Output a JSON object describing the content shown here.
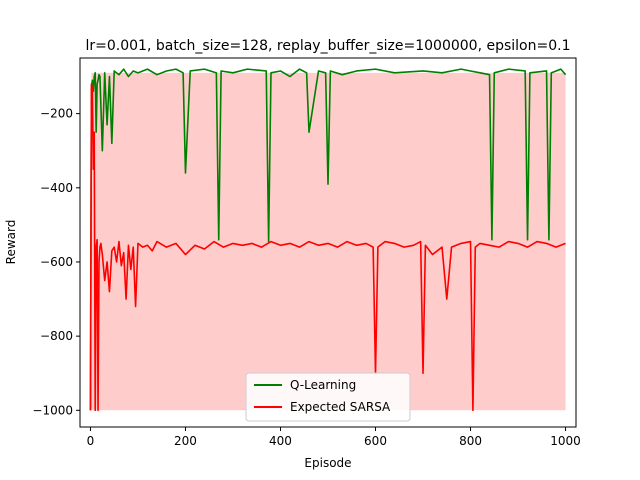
{
  "chart_data": {
    "type": "line",
    "title": "lr=0.001, batch_size=128, replay_buffer_size=1000000, epsilon=0.1",
    "xlabel": "Episode",
    "ylabel": "Reward",
    "xlim": [
      -22,
      1022
    ],
    "ylim": [
      -1045,
      -50
    ],
    "xticks": [
      0,
      200,
      400,
      600,
      800,
      1000
    ],
    "yticks": [
      -1000,
      -800,
      -600,
      -400,
      -200
    ],
    "xtick_labels": [
      "0",
      "200",
      "400",
      "600",
      "800",
      "1000"
    ],
    "ytick_labels": [
      "−1000",
      "−800",
      "−600",
      "−400",
      "−200"
    ],
    "grid": false,
    "legend_position": "lower center",
    "series": [
      {
        "name": "Q-Learning",
        "color": "#008000",
        "values": {
          "x": [
            0,
            2,
            4,
            6,
            8,
            10,
            12,
            14,
            16,
            18,
            20,
            25,
            30,
            35,
            40,
            45,
            50,
            55,
            60,
            70,
            80,
            90,
            100,
            120,
            140,
            160,
            180,
            195,
            200,
            210,
            240,
            265,
            270,
            275,
            300,
            330,
            370,
            375,
            380,
            400,
            420,
            440,
            455,
            460,
            480,
            495,
            500,
            505,
            530,
            560,
            600,
            640,
            700,
            740,
            780,
            800,
            820,
            840,
            845,
            850,
            880,
            915,
            920,
            925,
            960,
            965,
            970,
            990,
            1000
          ],
          "y": [
            -1000,
            -130,
            -110,
            -140,
            -100,
            -90,
            -250,
            -120,
            -110,
            -95,
            -100,
            -300,
            -90,
            -230,
            -100,
            -280,
            -85,
            -90,
            -95,
            -80,
            -100,
            -85,
            -90,
            -80,
            -95,
            -85,
            -80,
            -90,
            -360,
            -85,
            -80,
            -90,
            -540,
            -85,
            -90,
            -80,
            -85,
            -545,
            -90,
            -85,
            -100,
            -80,
            -90,
            -250,
            -85,
            -90,
            -390,
            -85,
            -95,
            -85,
            -80,
            -90,
            -85,
            -90,
            -80,
            -85,
            -90,
            -95,
            -540,
            -90,
            -80,
            -85,
            -540,
            -90,
            -85,
            -540,
            -90,
            -80,
            -95
          ]
        }
      },
      {
        "name": "Expected SARSA",
        "color": "#ff0000",
        "values": {
          "x": [
            0,
            2,
            4,
            6,
            8,
            10,
            12,
            14,
            16,
            18,
            20,
            22,
            25,
            30,
            35,
            40,
            45,
            50,
            55,
            60,
            65,
            70,
            75,
            80,
            85,
            90,
            95,
            100,
            110,
            120,
            130,
            140,
            160,
            180,
            200,
            220,
            240,
            260,
            280,
            300,
            320,
            340,
            360,
            380,
            400,
            420,
            440,
            460,
            480,
            500,
            520,
            540,
            560,
            580,
            595,
            600,
            605,
            620,
            640,
            660,
            680,
            695,
            700,
            705,
            720,
            740,
            750,
            760,
            780,
            800,
            805,
            810,
            820,
            840,
            860,
            880,
            900,
            920,
            940,
            960,
            980,
            1000
          ],
          "y": [
            -1000,
            -120,
            -130,
            -350,
            -250,
            -1000,
            -560,
            -540,
            -1000,
            -600,
            -560,
            -550,
            -580,
            -650,
            -600,
            -680,
            -570,
            -560,
            -600,
            -545,
            -610,
            -575,
            -700,
            -555,
            -620,
            -560,
            -720,
            -550,
            -560,
            -555,
            -570,
            -545,
            -560,
            -550,
            -580,
            -555,
            -565,
            -545,
            -560,
            -550,
            -555,
            -550,
            -560,
            -545,
            -555,
            -550,
            -560,
            -545,
            -555,
            -550,
            -560,
            -545,
            -555,
            -550,
            -560,
            -900,
            -560,
            -545,
            -550,
            -560,
            -555,
            -545,
            -900,
            -555,
            -580,
            -560,
            -700,
            -560,
            -550,
            -545,
            -1000,
            -560,
            -550,
            -555,
            -560,
            -545,
            -550,
            -560,
            -545,
            -550,
            -560,
            -550
          ]
        }
      }
    ]
  }
}
